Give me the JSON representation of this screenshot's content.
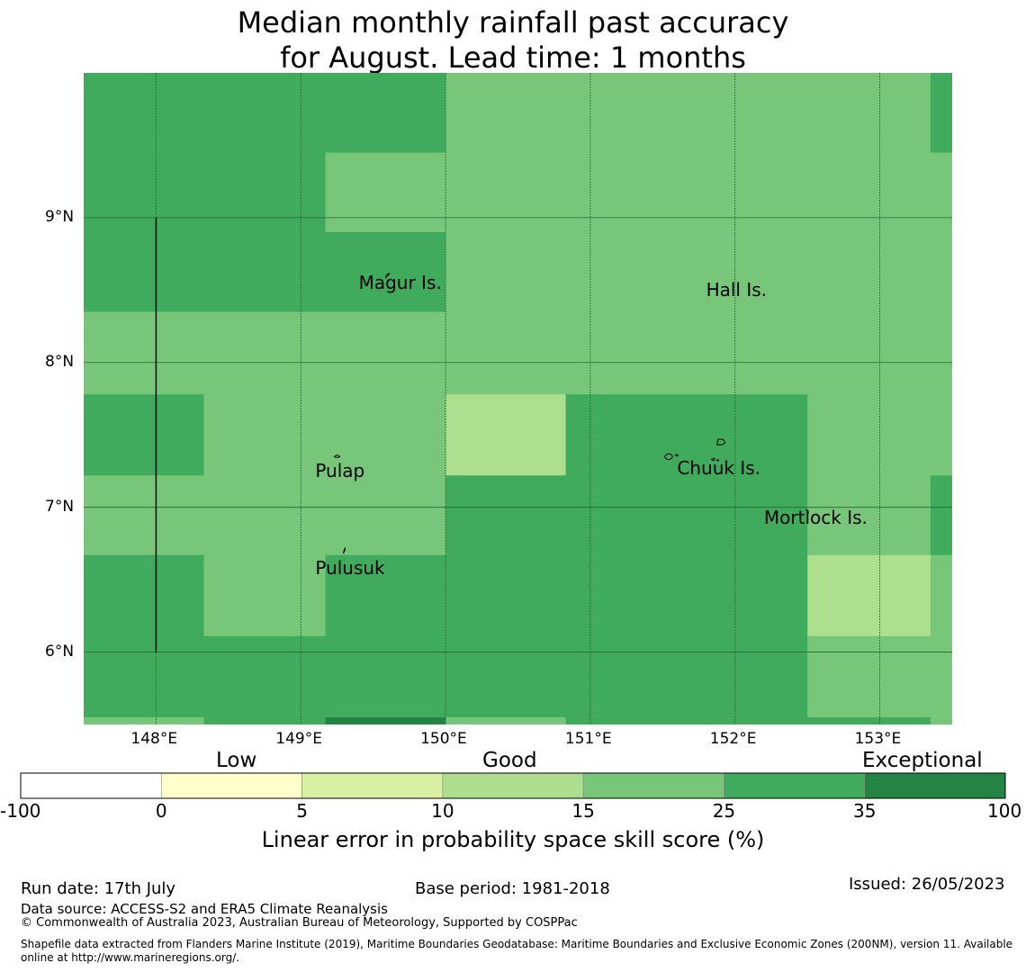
{
  "title": {
    "line1": "Median monthly rainfall past accuracy",
    "line2": "for August. Lead time: 1 months"
  },
  "map": {
    "lon_range": [
      147.5,
      153.5
    ],
    "lat_range": [
      5.5,
      10.0
    ],
    "grid": true,
    "lat_ticks": [
      {
        "value": 9,
        "label": "9°N"
      },
      {
        "value": 8,
        "label": "8°N"
      },
      {
        "value": 7,
        "label": "7°N"
      },
      {
        "value": 6,
        "label": "6°N"
      }
    ],
    "lon_ticks": [
      {
        "value": 148,
        "label": "148°E"
      },
      {
        "value": 149,
        "label": "149°E"
      },
      {
        "value": 150,
        "label": "150°E"
      },
      {
        "value": 151,
        "label": "151°E"
      },
      {
        "value": 152,
        "label": "152°E"
      },
      {
        "value": 153,
        "label": "153°E"
      }
    ],
    "places": [
      {
        "name": "Magur Is.",
        "lon": 149.4,
        "lat": 8.55
      },
      {
        "name": "Hall Is.",
        "lon": 151.8,
        "lat": 8.5
      },
      {
        "name": "Pulap",
        "lon": 149.1,
        "lat": 7.25
      },
      {
        "name": "Chuuk Is.",
        "lon": 151.6,
        "lat": 7.27
      },
      {
        "name": "Mortlock Is.",
        "lon": 152.2,
        "lat": 6.93
      },
      {
        "name": "Pulusuk",
        "lon": 149.1,
        "lat": 6.58
      }
    ],
    "colors": {
      "c_10_15": "#addf8e",
      "c_15_25": "#78c679",
      "c_25_35": "#41ab5d",
      "c_35_100": "#238443"
    },
    "cells": [
      {
        "lon": [
          147.5,
          150.0
        ],
        "lat": [
          9.45,
          10.0
        ],
        "color": "c_25_35"
      },
      {
        "lon": [
          150.0,
          153.35
        ],
        "lat": [
          9.45,
          10.0
        ],
        "color": "c_15_25"
      },
      {
        "lon": [
          153.35,
          153.5
        ],
        "lat": [
          9.45,
          10.0
        ],
        "color": "c_25_35"
      },
      {
        "lon": [
          147.5,
          149.17
        ],
        "lat": [
          8.9,
          9.45
        ],
        "color": "c_25_35"
      },
      {
        "lon": [
          149.17,
          153.5
        ],
        "lat": [
          8.9,
          9.45
        ],
        "color": "c_15_25"
      },
      {
        "lon": [
          147.5,
          150.0
        ],
        "lat": [
          8.35,
          8.9
        ],
        "color": "c_25_35"
      },
      {
        "lon": [
          150.0,
          153.5
        ],
        "lat": [
          8.35,
          8.9
        ],
        "color": "c_15_25"
      },
      {
        "lon": [
          147.5,
          153.5
        ],
        "lat": [
          7.78,
          8.35
        ],
        "color": "c_15_25"
      },
      {
        "lon": [
          147.5,
          148.33
        ],
        "lat": [
          7.22,
          7.78
        ],
        "color": "c_25_35"
      },
      {
        "lon": [
          148.33,
          150.0
        ],
        "lat": [
          7.22,
          7.78
        ],
        "color": "c_15_25"
      },
      {
        "lon": [
          150.0,
          150.83
        ],
        "lat": [
          7.22,
          7.78
        ],
        "color": "c_10_15"
      },
      {
        "lon": [
          150.83,
          152.5
        ],
        "lat": [
          7.22,
          7.78
        ],
        "color": "c_25_35"
      },
      {
        "lon": [
          152.5,
          153.5
        ],
        "lat": [
          7.22,
          7.78
        ],
        "color": "c_15_25"
      },
      {
        "lon": [
          147.5,
          150.0
        ],
        "lat": [
          6.67,
          7.22
        ],
        "color": "c_15_25"
      },
      {
        "lon": [
          150.0,
          152.5
        ],
        "lat": [
          6.67,
          7.22
        ],
        "color": "c_25_35"
      },
      {
        "lon": [
          152.5,
          153.35
        ],
        "lat": [
          6.67,
          7.22
        ],
        "color": "c_15_25"
      },
      {
        "lon": [
          153.35,
          153.5
        ],
        "lat": [
          6.67,
          7.22
        ],
        "color": "c_25_35"
      },
      {
        "lon": [
          147.5,
          148.33
        ],
        "lat": [
          6.11,
          6.67
        ],
        "color": "c_25_35"
      },
      {
        "lon": [
          148.33,
          149.17
        ],
        "lat": [
          6.11,
          6.67
        ],
        "color": "c_15_25"
      },
      {
        "lon": [
          149.17,
          152.5
        ],
        "lat": [
          6.11,
          6.67
        ],
        "color": "c_25_35"
      },
      {
        "lon": [
          152.5,
          153.35
        ],
        "lat": [
          6.11,
          6.67
        ],
        "color": "c_10_15"
      },
      {
        "lon": [
          153.35,
          153.5
        ],
        "lat": [
          6.11,
          6.67
        ],
        "color": "c_15_25"
      },
      {
        "lon": [
          147.5,
          152.5
        ],
        "lat": [
          5.55,
          6.11
        ],
        "color": "c_25_35"
      },
      {
        "lon": [
          152.5,
          153.5
        ],
        "lat": [
          5.55,
          6.11
        ],
        "color": "c_15_25"
      },
      {
        "lon": [
          147.5,
          148.33
        ],
        "lat": [
          5.5,
          5.55
        ],
        "color": "c_15_25"
      },
      {
        "lon": [
          148.33,
          149.17
        ],
        "lat": [
          5.5,
          5.55
        ],
        "color": "c_25_35"
      },
      {
        "lon": [
          149.17,
          150.0
        ],
        "lat": [
          5.5,
          5.55
        ],
        "color": "c_35_100"
      },
      {
        "lon": [
          150.0,
          150.83
        ],
        "lat": [
          5.5,
          5.55
        ],
        "color": "c_15_25"
      },
      {
        "lon": [
          150.83,
          152.5
        ],
        "lat": [
          5.5,
          5.55
        ],
        "color": "c_25_35"
      },
      {
        "lon": [
          152.5,
          153.35
        ],
        "lat": [
          5.5,
          5.55
        ],
        "color": "c_25_35"
      },
      {
        "lon": [
          153.35,
          153.5
        ],
        "lat": [
          5.5,
          5.55
        ],
        "color": "c_15_25"
      }
    ],
    "boundary_line": {
      "lon": 148.0,
      "lat": [
        6.0,
        9.0
      ]
    }
  },
  "colorbar": {
    "categories": [
      "Low",
      "Good",
      "Exceptional"
    ],
    "ticks": [
      "-100",
      "0",
      "5",
      "10",
      "15",
      "25",
      "35",
      "100"
    ],
    "colors": [
      "#ffffff",
      "#ffffcc",
      "#d9f0a3",
      "#addd8e",
      "#78c679",
      "#41ab5d",
      "#238443"
    ],
    "label": "Linear error in probability space skill score (%)"
  },
  "footer": {
    "run_date": "Run date: 17th July",
    "base_period": "Base period: 1981-2018",
    "issued": "Issued: 26/05/2023",
    "data_source": "Data source: ACCESS-S2 and ERA5 Climate Reanalysis",
    "copyright": "© Commonwealth of Australia 2023, Australian Bureau of Meteorology, Supported by COSPPac",
    "shapefile_line1": "Shapefile data extracted from Flanders Marine Institute (2019), Maritime Boundaries Geodatabase: Maritime Boundaries and Exclusive Economic Zones (200NM), version 11. Available",
    "shapefile_line2": "online at http://www.marineregions.org/."
  }
}
